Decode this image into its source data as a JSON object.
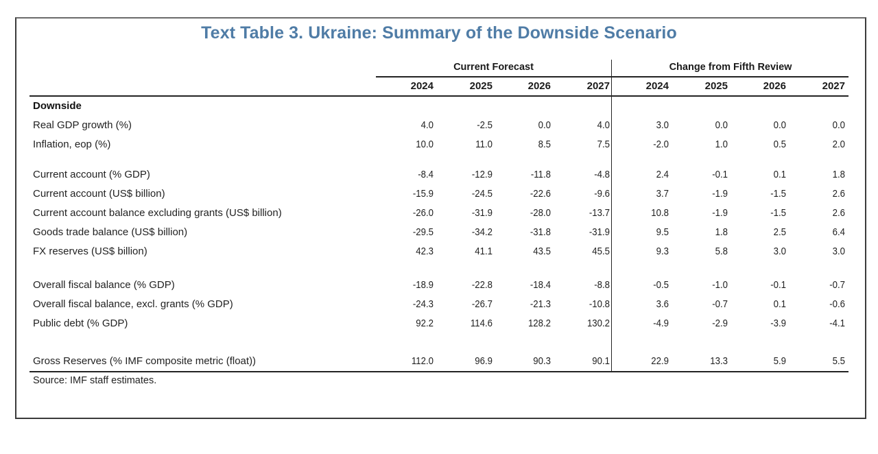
{
  "title": "Text Table 3. Ukraine: Summary of the Downside Scenario",
  "groups": {
    "current": "Current Forecast",
    "change": "Change from Fifth Review"
  },
  "years": [
    "2024",
    "2025",
    "2026",
    "2027",
    "2024",
    "2025",
    "2026",
    "2027"
  ],
  "section_label": "Downside",
  "rows": [
    {
      "label": "Real GDP growth (%)",
      "values": [
        "4.0",
        "-2.5",
        "0.0",
        "4.0",
        "3.0",
        "0.0",
        "0.0",
        "0.0"
      ]
    },
    {
      "label": "Inflation, eop (%)",
      "values": [
        "10.0",
        "11.0",
        "8.5",
        "7.5",
        "-2.0",
        "1.0",
        "0.5",
        "2.0"
      ]
    },
    {
      "label": "Current account (% GDP)",
      "values": [
        "-8.4",
        "-12.9",
        "-11.8",
        "-4.8",
        "2.4",
        "-0.1",
        "0.1",
        "1.8"
      ]
    },
    {
      "label": "Current account (US$ billion)",
      "values": [
        "-15.9",
        "-24.5",
        "-22.6",
        "-9.6",
        "3.7",
        "-1.9",
        "-1.5",
        "2.6"
      ]
    },
    {
      "label": "Current account balance excluding grants (US$ billion)",
      "values": [
        "-26.0",
        "-31.9",
        "-28.0",
        "-13.7",
        "10.8",
        "-1.9",
        "-1.5",
        "2.6"
      ]
    },
    {
      "label": "Goods trade balance (US$ billion)",
      "values": [
        "-29.5",
        "-34.2",
        "-31.8",
        "-31.9",
        "9.5",
        "1.8",
        "2.5",
        "6.4"
      ]
    },
    {
      "label": "FX reserves (US$ billion)",
      "values": [
        "42.3",
        "41.1",
        "43.5",
        "45.5",
        "9.3",
        "5.8",
        "3.0",
        "3.0"
      ]
    },
    {
      "label": "Overall fiscal balance (% GDP)",
      "values": [
        "-18.9",
        "-22.8",
        "-18.4",
        "-8.8",
        "-0.5",
        "-1.0",
        "-0.1",
        "-0.7"
      ]
    },
    {
      "label": "Overall fiscal balance, excl. grants (% GDP)",
      "values": [
        "-24.3",
        "-26.7",
        "-21.3",
        "-10.8",
        "3.6",
        "-0.7",
        "0.1",
        "-0.6"
      ]
    },
    {
      "label": "Public debt (% GDP)",
      "values": [
        "92.2",
        "114.6",
        "128.2",
        "130.2",
        "-4.9",
        "-2.9",
        "-3.9",
        "-4.1"
      ]
    },
    {
      "label": "Gross Reserves (% IMF composite metric (float))",
      "values": [
        "112.0",
        "96.9",
        "90.3",
        "90.1",
        "22.9",
        "13.3",
        "5.9",
        "5.5"
      ]
    }
  ],
  "source": "Source: IMF staff estimates."
}
